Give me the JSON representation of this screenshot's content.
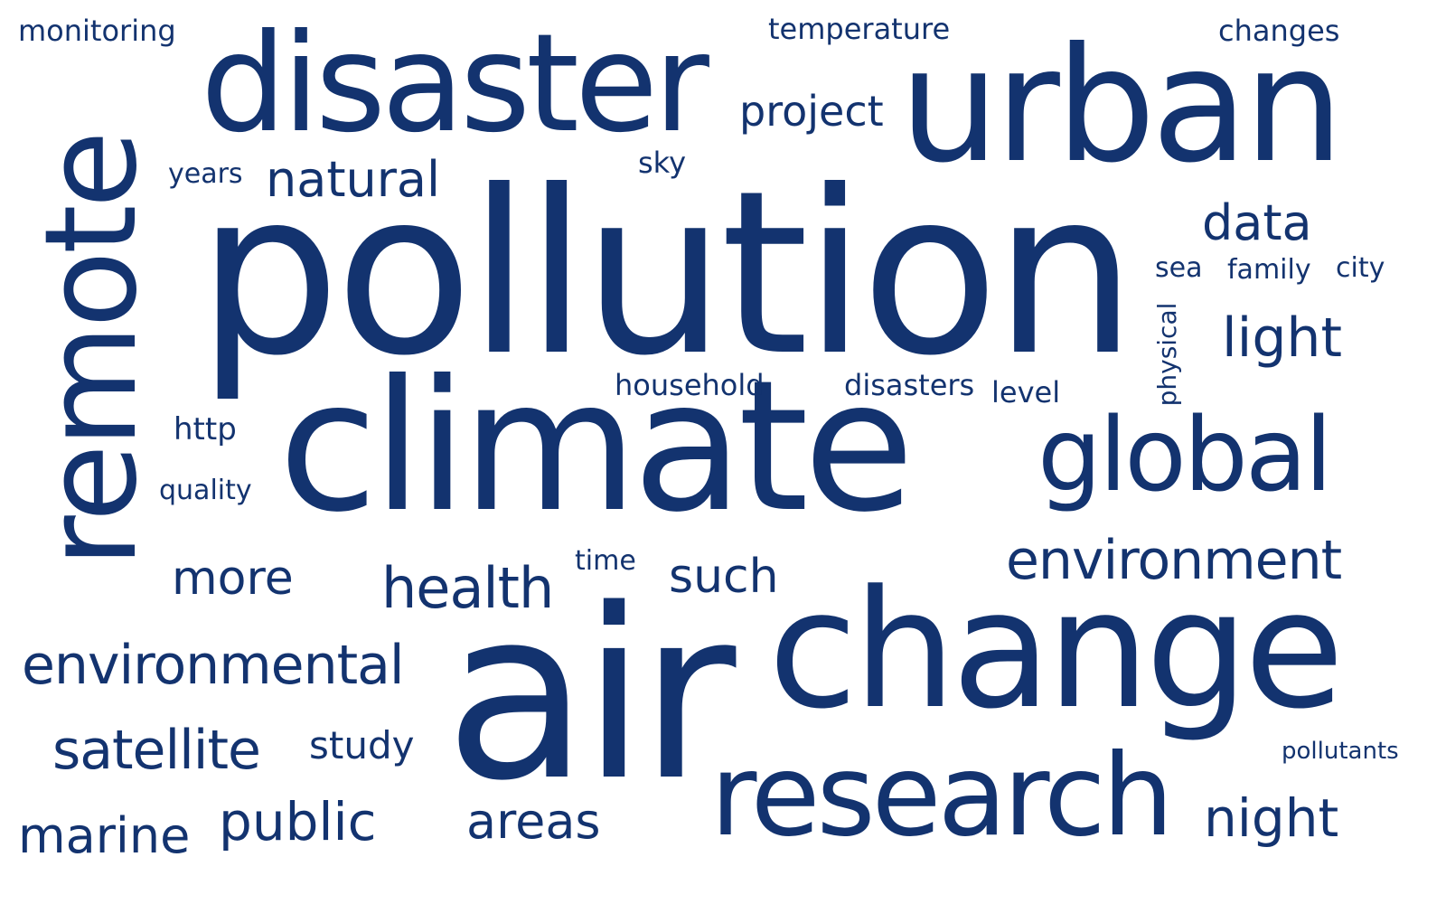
{
  "cloud": {
    "color": "#13336f",
    "words": {
      "pollution": "pollution",
      "climate": "climate",
      "air": "air",
      "change": "change",
      "urban": "urban",
      "disaster": "disaster",
      "research": "research",
      "global": "global",
      "remote": "remote",
      "environment": "environment",
      "environmental": "environmental",
      "satellite": "satellite",
      "health": "health",
      "more": "more",
      "such": "such",
      "natural": "natural",
      "project": "project",
      "data": "data",
      "light": "light",
      "night": "night",
      "public": "public",
      "areas": "areas",
      "marine": "marine",
      "study": "study",
      "http": "http",
      "quality": "quality",
      "years": "years",
      "sky": "sky",
      "monitoring": "monitoring",
      "temperature": "temperature",
      "changes": "changes",
      "household": "household",
      "disasters": "disasters",
      "level": "level",
      "sea": "sea",
      "family": "family",
      "city": "city",
      "time": "time",
      "pollutants": "pollutants",
      "physical": "physical"
    }
  }
}
